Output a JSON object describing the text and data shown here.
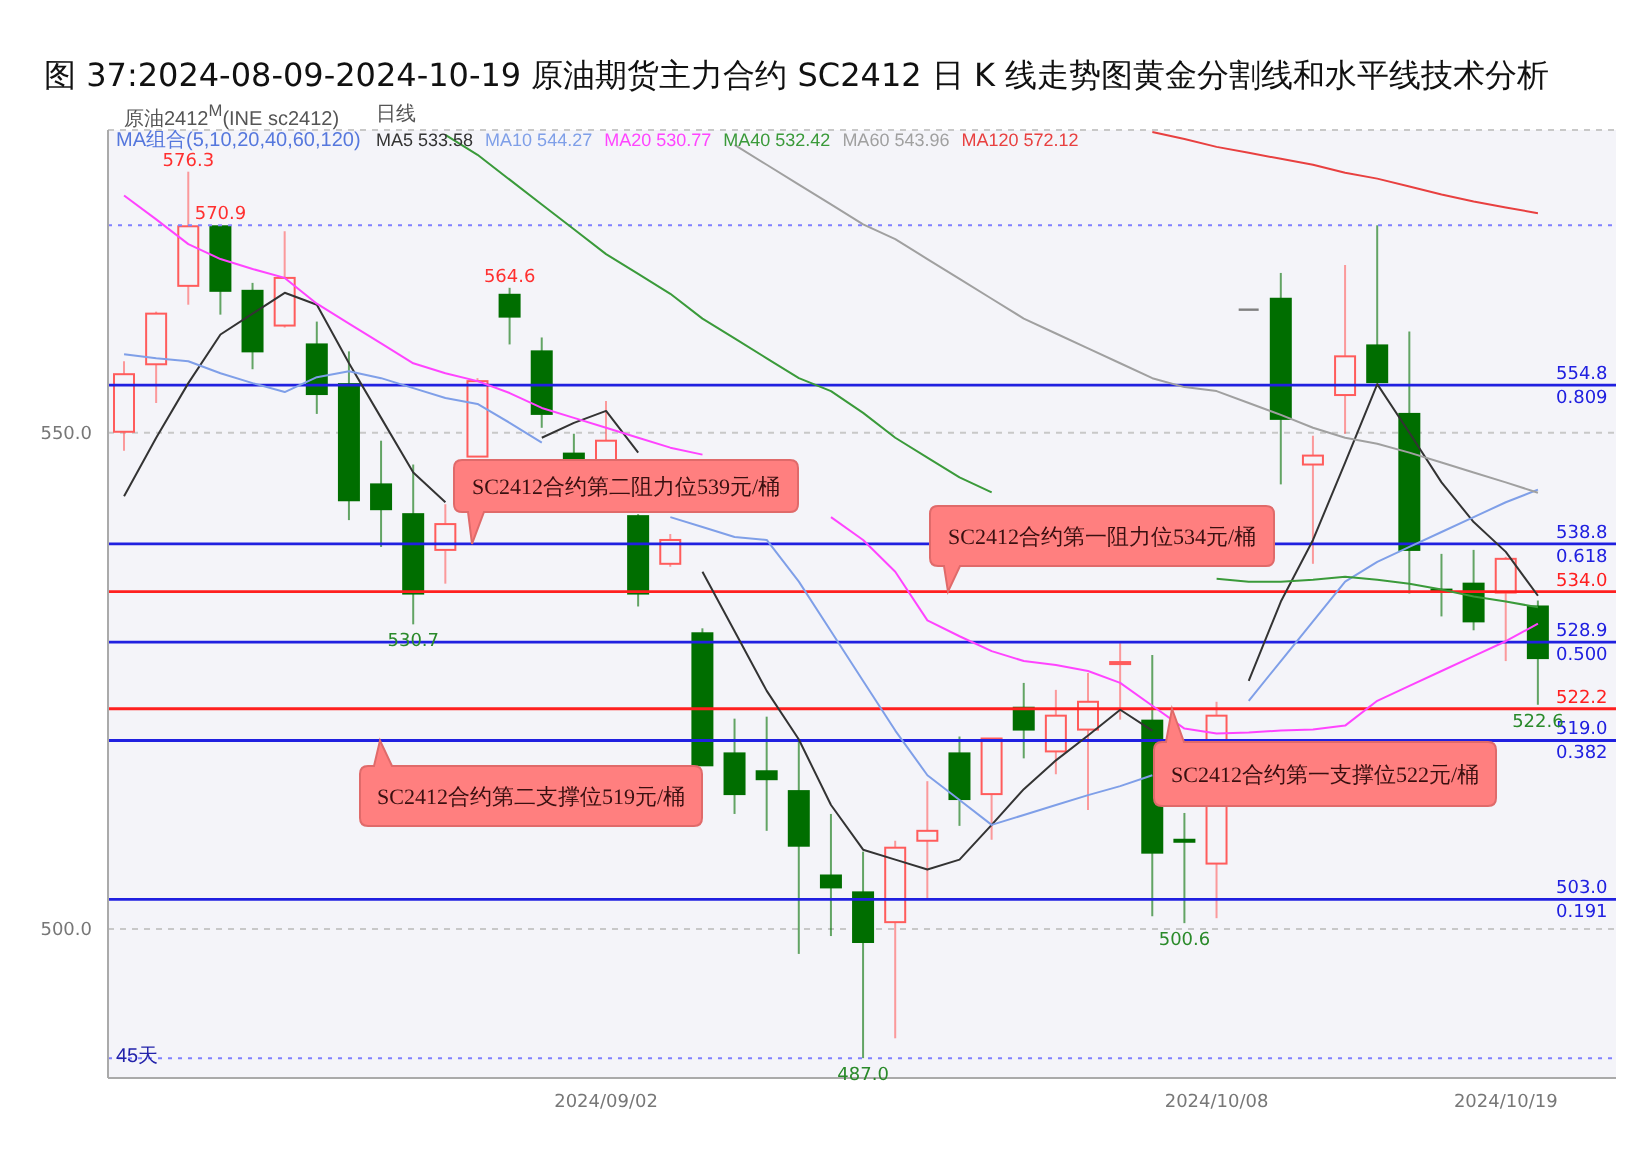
{
  "chart_data": {
    "type": "candlestick",
    "title": "图 37:2024-08-09-2024-10-19 原油期货主力合约 SC2412 日 K 线走势图黄金分割线和水平线技术分析",
    "categories": [
      null,
      null,
      null,
      null,
      null,
      null,
      null,
      null,
      null,
      null,
      null,
      null,
      null,
      null,
      null,
      "2024/09/02",
      null,
      null,
      null,
      null,
      null,
      null,
      null,
      null,
      null,
      null,
      null,
      null,
      null,
      null,
      null,
      null,
      null,
      null,
      "2024/10/08",
      null,
      null,
      null,
      null,
      null,
      null,
      null,
      null,
      "2024/10/19",
      null
    ],
    "ohlc": [
      [
        550.1,
        557.2,
        548.2,
        555.9
      ],
      [
        556.9,
        562.2,
        553.0,
        562.0
      ],
      [
        564.8,
        576.3,
        562.9,
        570.8
      ],
      [
        570.8,
        570.9,
        561.9,
        564.3
      ],
      [
        564.3,
        565.1,
        556.4,
        558.2
      ],
      [
        560.8,
        570.3,
        560.6,
        565.6
      ],
      [
        558.9,
        561.2,
        551.9,
        553.9
      ],
      [
        554.9,
        558.2,
        541.2,
        543.2
      ],
      [
        544.8,
        549.2,
        538.5,
        542.3
      ],
      [
        541.8,
        546.8,
        530.7,
        533.8
      ],
      [
        538.2,
        542.8,
        534.8,
        540.8
      ],
      [
        547.6,
        555.5,
        547.6,
        555.2
      ],
      [
        563.9,
        564.6,
        558.9,
        561.7
      ],
      [
        558.2,
        559.6,
        550.5,
        551.9
      ],
      [
        547.9,
        549.9,
        547.2,
        547.2
      ],
      [
        547.2,
        553.2,
        547.2,
        549.2
      ],
      [
        541.6,
        541.8,
        532.5,
        533.8
      ],
      [
        536.8,
        539.8,
        536.5,
        539.2
      ],
      [
        529.8,
        530.3,
        516.5,
        516.5
      ],
      [
        517.7,
        521.2,
        511.6,
        513.6
      ],
      [
        515.9,
        521.4,
        509.9,
        515.1
      ],
      [
        513.9,
        519.1,
        497.5,
        508.4
      ],
      [
        505.4,
        511.6,
        499.3,
        504.2
      ],
      [
        503.7,
        507.8,
        487.0,
        498.7
      ],
      [
        500.7,
        508.9,
        489.0,
        508.2
      ],
      [
        508.9,
        514.9,
        503.0,
        509.9
      ],
      [
        517.7,
        519.4,
        510.4,
        513.1
      ],
      [
        513.6,
        519.2,
        509.0,
        519.2
      ],
      [
        522.3,
        524.8,
        517.2,
        520.1
      ],
      [
        517.9,
        524.1,
        515.6,
        521.5
      ],
      [
        520.1,
        525.8,
        512.0,
        522.9
      ],
      [
        526.7,
        528.8,
        521.1,
        526.9
      ],
      [
        521.0,
        527.6,
        501.3,
        507.7
      ],
      [
        509.0,
        511.7,
        500.6,
        508.9
      ],
      [
        506.6,
        522.9,
        501.1,
        521.5
      ],
      [
        562.4,
        562.4,
        562.4,
        562.4
      ],
      [
        563.5,
        566.1,
        544.8,
        551.4
      ],
      [
        546.8,
        549.7,
        536.8,
        547.7
      ],
      [
        553.8,
        566.9,
        549.9,
        557.7
      ],
      [
        558.8,
        570.9,
        555.1,
        555.1
      ],
      [
        551.9,
        560.2,
        533.8,
        538.2
      ],
      [
        534.2,
        537.8,
        531.5,
        534.1
      ],
      [
        534.8,
        538.2,
        530.1,
        531.0
      ],
      [
        533.9,
        537.5,
        527.0,
        537.3
      ],
      [
        532.5,
        533.1,
        522.6,
        527.3
      ]
    ],
    "series": [
      {
        "type": "line",
        "name": "MA5 533.58",
        "color": "#333333",
        "values": [
          543.6,
          549.5,
          555,
          559.9,
          562,
          564.1,
          562.9,
          557,
          551.5,
          546,
          543,
          null,
          null,
          549.5,
          551,
          552.2,
          548,
          null,
          536,
          530,
          524,
          519.1,
          512.5,
          508.0,
          507,
          506.0,
          507.0,
          510.5,
          514.1,
          517,
          519.5,
          522.1,
          520,
          null,
          null,
          525,
          533,
          539.2,
          547,
          554.9,
          550,
          545,
          541,
          538,
          533.58
        ]
      },
      {
        "type": "line",
        "name": "MA10 544.27",
        "color": "#7f9fe8",
        "values": [
          557.9,
          557.5,
          557.2,
          556,
          555,
          554.1,
          555.6,
          556.2,
          555.5,
          554.5,
          553.5,
          552.9,
          551,
          549,
          null,
          null,
          null,
          541.5,
          540.5,
          539.5,
          539.2,
          535,
          530,
          525,
          520,
          515.5,
          513,
          510.5,
          511.5,
          512.5,
          513.5,
          514.4,
          515.5,
          null,
          null,
          523,
          527,
          531,
          535,
          537,
          538.5,
          540,
          541.5,
          543,
          544.27
        ]
      },
      {
        "type": "line",
        "name": "MA20 530.77",
        "color": "#ff44ff",
        "values": [
          573.9,
          571.5,
          569,
          567.5,
          566.5,
          565.6,
          563,
          561,
          559,
          557,
          556,
          555.2,
          554,
          552.5,
          551.5,
          550.5,
          549.5,
          548.5,
          547.8,
          null,
          null,
          null,
          541.5,
          539.2,
          536,
          531.1,
          529.5,
          528,
          527,
          526.6,
          526,
          524.8,
          522.5,
          520.2,
          519.7,
          519.8,
          520,
          520.1,
          520.5,
          523,
          524.5,
          526,
          527.5,
          529,
          530.77
        ]
      },
      {
        "type": "line",
        "name": "MA40 532.42",
        "color": "#3a9a3a",
        "values": [
          null,
          null,
          null,
          null,
          null,
          null,
          null,
          null,
          null,
          null,
          580,
          578,
          575.5,
          573,
          570.5,
          568,
          566,
          564,
          561.5,
          559.5,
          557.5,
          555.5,
          554.2,
          552,
          549.5,
          547.5,
          545.5,
          544,
          null,
          null,
          null,
          null,
          null,
          null,
          535.3,
          535,
          535,
          535.2,
          535.5,
          535.2,
          534.8,
          534.2,
          533.5,
          533,
          532.42
        ]
      },
      {
        "type": "line",
        "name": "MA60 543.96",
        "color": "#a0a0a0",
        "values": [
          null,
          null,
          null,
          null,
          null,
          null,
          null,
          null,
          null,
          null,
          null,
          null,
          null,
          null,
          null,
          null,
          null,
          null,
          null,
          579,
          577,
          575,
          573,
          571,
          569.5,
          567.5,
          565.5,
          563.5,
          561.5,
          560,
          558.5,
          557,
          555.5,
          554.6,
          554.2,
          553,
          551.8,
          550.5,
          549.5,
          548.9,
          548,
          547,
          546,
          545,
          543.96
        ]
      },
      {
        "type": "line",
        "name": "MA120 572.12",
        "color": "#e84040",
        "values": [
          null,
          null,
          null,
          null,
          null,
          null,
          null,
          null,
          null,
          null,
          null,
          null,
          null,
          null,
          null,
          null,
          null,
          null,
          null,
          null,
          null,
          null,
          null,
          null,
          null,
          null,
          null,
          null,
          null,
          null,
          null,
          null,
          580.3,
          579.6,
          578.8,
          578.2,
          577.6,
          577,
          576.2,
          575.6,
          574.8,
          574,
          573.3,
          572.7,
          572.12
        ]
      }
    ],
    "ylim": [
      485,
      580.5
    ],
    "yticks": [
      {
        "value": 500,
        "label": "500.0"
      },
      {
        "value": 550,
        "label": "550.0"
      }
    ],
    "grid": "y",
    "legend": "top",
    "marker": "none",
    "ref_lines": [
      {
        "axis": "y",
        "value": 554.8,
        "label": "554.8\n0.809",
        "color": "#2020e0"
      },
      {
        "axis": "y",
        "value": 538.8,
        "label": "538.8\n0.618",
        "color": "#2020e0"
      },
      {
        "axis": "y",
        "value": 534.0,
        "label": "534.0",
        "color": "#ff2020"
      },
      {
        "axis": "y",
        "value": 528.9,
        "label": "528.9\n0.500",
        "color": "#2020e0"
      },
      {
        "axis": "y",
        "value": 522.2,
        "label": "522.2",
        "color": "#ff2020"
      },
      {
        "axis": "y",
        "value": 519.0,
        "label": "519.0\n0.382",
        "color": "#2020e0"
      },
      {
        "axis": "y",
        "value": 503.0,
        "label": "503.0\n0.191",
        "color": "#2020e0"
      },
      {
        "axis": "y",
        "value": 570.9,
        "color": "#8080ff",
        "line_style": "dotted"
      },
      {
        "axis": "y",
        "value": 487.0,
        "color": "#8080ff",
        "line_style": "dotted"
      }
    ],
    "annotations": [
      "原油2412$^{M}$(INE sc2412)",
      "日线",
      "MA组合(5,10,20,40,60,120)",
      "45天",
      {
        "text": "576.3",
        "y": 576.3
      },
      {
        "text": "564.6",
        "y": 564.6
      },
      {
        "text": "570.9",
        "y": 570.9
      },
      {
        "text": "530.7",
        "y": 530.7
      },
      {
        "text": "487.0",
        "y": 487.0
      },
      {
        "text": "500.6",
        "y": 500.6
      },
      {
        "text": "522.6",
        "y": 522.6
      },
      {
        "text": "SC2412合约第二阻力位539元/桶",
        "y": 538.8
      },
      {
        "text": "SC2412合约第一阻力位534元/桶",
        "y": 534.0
      },
      {
        "text": "SC2412合约第二支撑位519元/桶",
        "y": 519.0
      },
      {
        "text": "SC2412合约第一支撑位522元/桶",
        "y": 522.2
      }
    ]
  }
}
